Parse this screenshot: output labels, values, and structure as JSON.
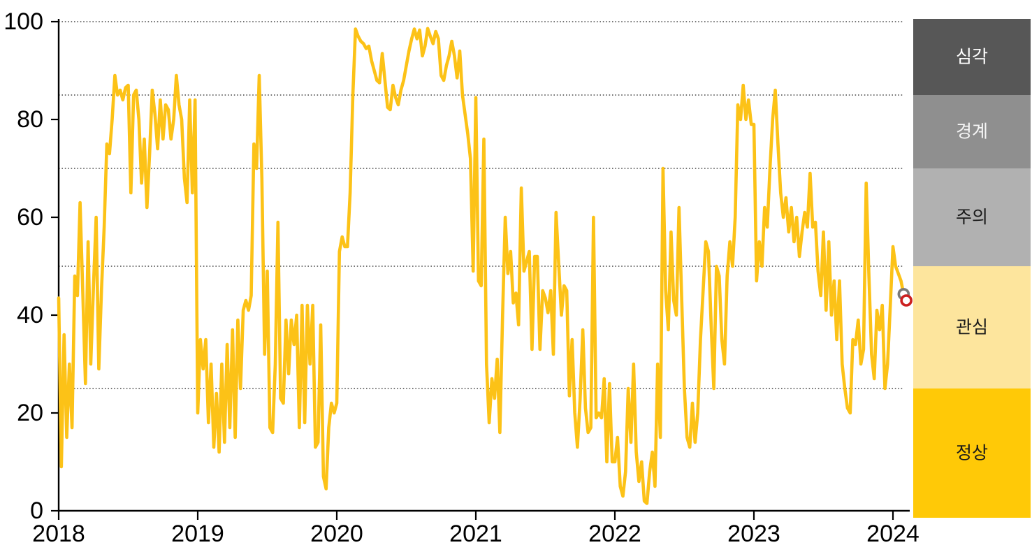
{
  "chart_data": {
    "type": "line",
    "title": "",
    "xlabel": "",
    "ylabel": "",
    "x_axis": {
      "tick_labels": [
        "2018",
        "2019",
        "2020",
        "2021",
        "2022",
        "2023",
        "2024"
      ],
      "tick_values": [
        2018,
        2019,
        2020,
        2021,
        2022,
        2023,
        2024
      ]
    },
    "y_axis": {
      "tick_labels": [
        "0",
        "20",
        "40",
        "60",
        "80",
        "100"
      ],
      "tick_values": [
        0,
        20,
        40,
        60,
        80,
        100
      ],
      "range": [
        0,
        100
      ]
    },
    "gridline_values": [
      100,
      85,
      70,
      50,
      25
    ],
    "grid_style": "dotted",
    "legend_position": "right-band",
    "line_color": "#FCC217",
    "series": [
      {
        "name": "weekly-risk-index",
        "start_year": 2018,
        "points_per_year": 52,
        "values": [
          43.5,
          9,
          36,
          15,
          30,
          17,
          48,
          44,
          63,
          45,
          26,
          55,
          30,
          46,
          60,
          29,
          45,
          58,
          75,
          73,
          80,
          89,
          85,
          86,
          84,
          86.5,
          87,
          65,
          85,
          86,
          80,
          67,
          76,
          62,
          73,
          86,
          81,
          74,
          84,
          76,
          83,
          82,
          76,
          80,
          89,
          83,
          80,
          68,
          63,
          84,
          65,
          84,
          20,
          35,
          29,
          35,
          18,
          30,
          13,
          24,
          12,
          30,
          14,
          34,
          17,
          37,
          15,
          39,
          25,
          41,
          43,
          41,
          44,
          75,
          70,
          89,
          68,
          32,
          49,
          17,
          16,
          30,
          59,
          23,
          22,
          39,
          28,
          39,
          34,
          40,
          17,
          42,
          18,
          42,
          30,
          42,
          13,
          14,
          38,
          7,
          4.5,
          17,
          22,
          20,
          22,
          53,
          56,
          54,
          54,
          65,
          85,
          98.5,
          97,
          96,
          95.5,
          94.5,
          95,
          92,
          90,
          88,
          87.5,
          93.5,
          88,
          82.5,
          82,
          87,
          84.5,
          83,
          86,
          88,
          91,
          94,
          96.5,
          98.5,
          96.5,
          98.3,
          93,
          95,
          98.6,
          97,
          95.5,
          98,
          96.5,
          89,
          88,
          91,
          93,
          96,
          93,
          88.5,
          94,
          85,
          81,
          77,
          72,
          49,
          84.5,
          47,
          46,
          76,
          30,
          18,
          27,
          23,
          31,
          16,
          40,
          60,
          48.5,
          53,
          42.5,
          44.5,
          38,
          66,
          49,
          51,
          53,
          33,
          52,
          52,
          33,
          45,
          43.5,
          40.5,
          45,
          32,
          61,
          50.5,
          40,
          46,
          45,
          23.5,
          35,
          20,
          13,
          23,
          37,
          21,
          16,
          17,
          60,
          19,
          20,
          19,
          27,
          10,
          26,
          10,
          10,
          15,
          5,
          3,
          8,
          25,
          14,
          30,
          12,
          6,
          10,
          2,
          1.5,
          8,
          12,
          5,
          30,
          15,
          70,
          45,
          37,
          57,
          43,
          40,
          62,
          43,
          25,
          15,
          13,
          22,
          14,
          20,
          35,
          45,
          55,
          53,
          38,
          25,
          50,
          48,
          35,
          30,
          48,
          55,
          50,
          60,
          83,
          80,
          87,
          80,
          84,
          79,
          79,
          47,
          55,
          50,
          62,
          58,
          70,
          80,
          86,
          75,
          65,
          60,
          64,
          57,
          62,
          55,
          60,
          52,
          57,
          61,
          58,
          69,
          58,
          59,
          49,
          44,
          57,
          41,
          55,
          40,
          47,
          35,
          47,
          30,
          25,
          21,
          20,
          35,
          34,
          39,
          30,
          33,
          67,
          48,
          32,
          27,
          41,
          37,
          42,
          25,
          30,
          42,
          54,
          50,
          48.5,
          47,
          44.3
        ]
      }
    ],
    "end_markers": [
      {
        "key": "latest-gray",
        "x_year": 2024.077,
        "value": 44.3,
        "stroke": "#7A7A7A"
      },
      {
        "key": "latest-red",
        "x_year": 2024.096,
        "value": 43,
        "stroke": "#CC2020"
      }
    ],
    "bands": [
      {
        "key": "severe",
        "label": "심각",
        "from": 85,
        "to": 100,
        "bg": "#575757",
        "text_color": "#FFFFFF"
      },
      {
        "key": "alert",
        "label": "경계",
        "from": 70,
        "to": 85,
        "bg": "#8F8F8F",
        "text_color": "#F5F5F5"
      },
      {
        "key": "caution",
        "label": "주의",
        "from": 50,
        "to": 70,
        "bg": "#B1B1B1",
        "text_color": "#1A1A1A"
      },
      {
        "key": "attention",
        "label": "관심",
        "from": 25,
        "to": 50,
        "bg": "#FDE59D",
        "text_color": "#1A1A1A"
      },
      {
        "key": "normal",
        "label": "정상",
        "from": 0,
        "to": 25,
        "bg": "#FFC907",
        "text_color": "#1A1A1A"
      }
    ]
  }
}
